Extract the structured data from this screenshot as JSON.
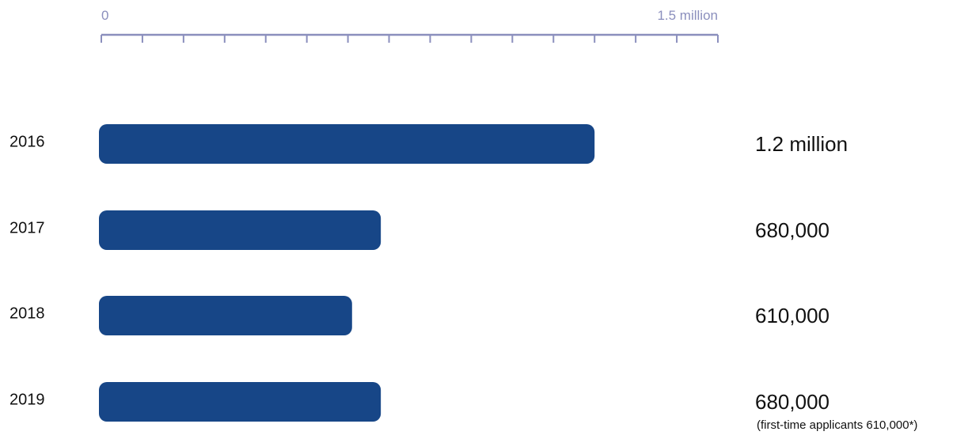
{
  "chart_data": {
    "type": "bar",
    "orientation": "horizontal",
    "xlim": [
      0,
      1500000
    ],
    "axis": {
      "min_label": "0",
      "max_label": "1.5 million",
      "position": "top",
      "tick_count": 15
    },
    "categories": [
      "2016",
      "2017",
      "2018",
      "2019"
    ],
    "values": [
      1200000,
      680000,
      610000,
      680000
    ],
    "value_labels": [
      "1.2 million",
      "680,000",
      "610,000",
      "680,000"
    ],
    "notes": [
      "",
      "",
      "",
      "(first-time applicants 610,000*)"
    ],
    "colors": {
      "bar": "#174687",
      "axis": "#8b8fbd",
      "text": "#111111"
    },
    "grid": false,
    "legend": "none"
  }
}
